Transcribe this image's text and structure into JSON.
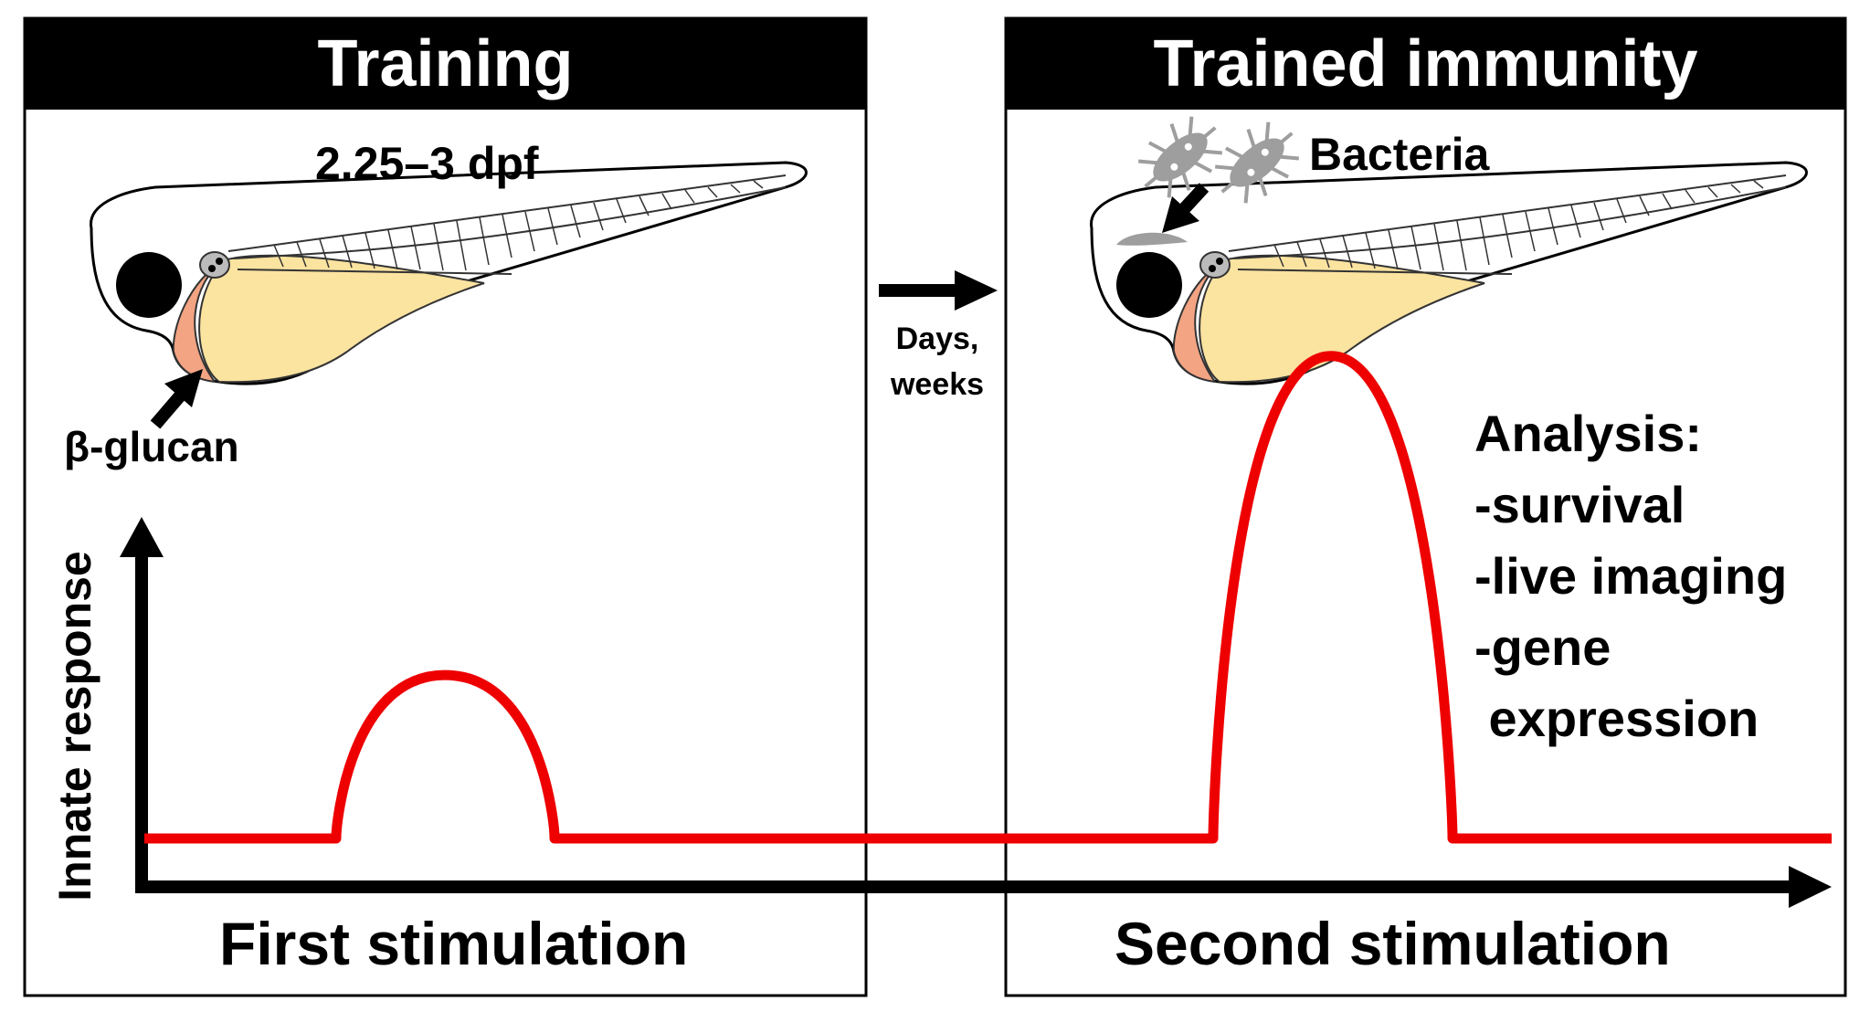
{
  "panels": {
    "left": {
      "title": "Training",
      "stage": "2.25–3 dpf",
      "stimulus": "β-glucan",
      "caption": "First stimulation"
    },
    "right": {
      "title": "Trained immunity",
      "stimulus": "Bacteria",
      "caption": "Second stimulation"
    }
  },
  "transition": {
    "label_line1": "Days,",
    "label_line2": "weeks"
  },
  "axis": {
    "ylabel": "Innate response"
  },
  "analysis": {
    "heading": "Analysis:",
    "items": [
      "-survival",
      "-live imaging",
      "-gene",
      " expression"
    ]
  },
  "response_curve": {
    "baseline": 0,
    "first_peak": 0.21,
    "second_peak": 0.62,
    "color": "#ee0000"
  },
  "colors": {
    "header_bg": "#000000",
    "yolk": "#fbe3a0",
    "heart": "#f3a483",
    "bacteria": "#9e9e9e"
  }
}
